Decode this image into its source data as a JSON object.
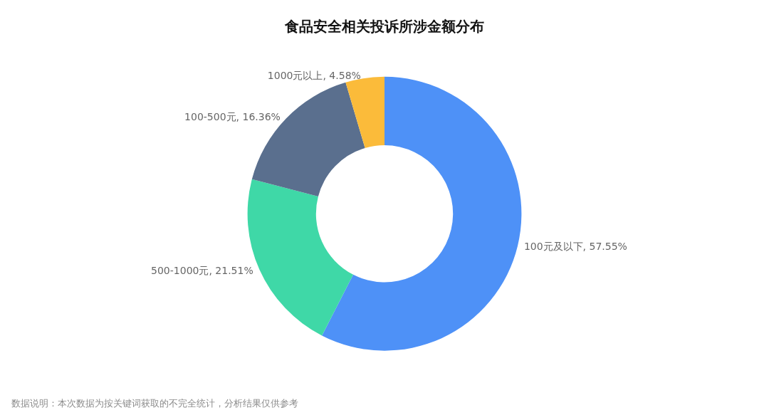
{
  "chart_data": {
    "type": "donut",
    "title": "食品安全相关投诉所涉金额分布",
    "categories": [
      "100元及以下",
      "500-1000元",
      "100-500元",
      "1000元以上"
    ],
    "values": [
      57.55,
      21.51,
      16.36,
      4.58
    ],
    "colors": [
      "#4e91f7",
      "#3fd8a7",
      "#5a6f8e",
      "#fbbb3a"
    ],
    "value_labels": [
      ", 57.55%",
      ", 21.51%",
      ", 16.36%",
      ", 4.58%"
    ],
    "legend": false,
    "annotations": [
      "数据说明：本次数据为按关键词获取的不完全统计，分析结果仅供参考"
    ]
  }
}
